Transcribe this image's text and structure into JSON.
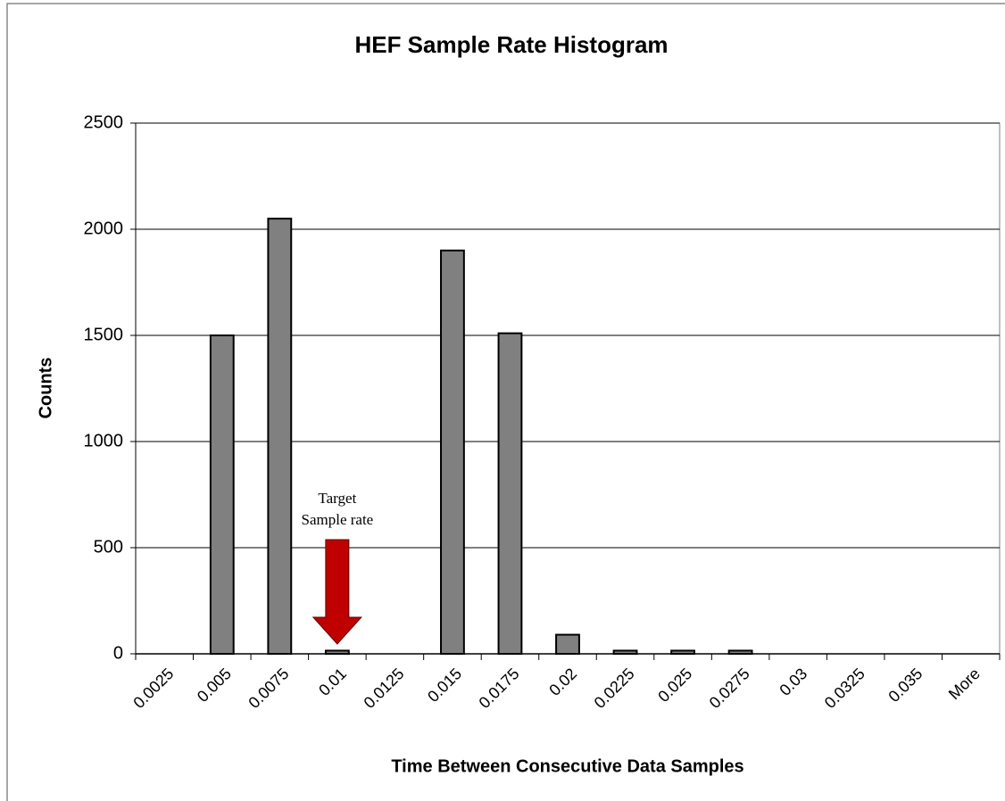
{
  "chart_data": {
    "type": "bar",
    "title": "HEF Sample Rate Histogram",
    "x_label": "Time Between Consecutive Data Samples",
    "y_label": "Counts",
    "categories": [
      "0.0025",
      "0.005",
      "0.0075",
      "0.01",
      "0.0125",
      "0.015",
      "0.0175",
      "0.02",
      "0.0225",
      "0.025",
      "0.0275",
      "0.03",
      "0.0325",
      "0.035",
      "More"
    ],
    "values": [
      0,
      1500,
      2050,
      15,
      0,
      1900,
      1510,
      90,
      15,
      15,
      15,
      0,
      0,
      0,
      0
    ],
    "color": "#808080",
    "ylim": [
      0,
      2500
    ],
    "yticks": [
      0,
      500,
      1000,
      1500,
      2000,
      2500
    ],
    "grid": true,
    "annotation": [
      "Target",
      "Sample rate"
    ],
    "annotation_color": "#c00000"
  }
}
